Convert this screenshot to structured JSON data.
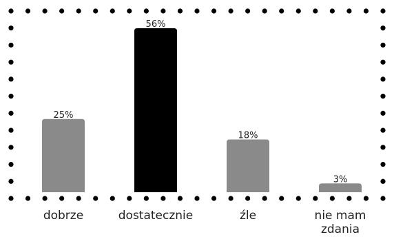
{
  "chart_data": {
    "type": "bar",
    "categories": [
      "dobrze",
      "dostatecznie",
      "źle",
      "nie mam zdania"
    ],
    "values": [
      25,
      56,
      18,
      3
    ],
    "value_labels": [
      "25%",
      "56%",
      "18%",
      "3%"
    ],
    "bar_colors": [
      "#8a8a8a",
      "#000000",
      "#8a8a8a",
      "#8a8a8a"
    ],
    "border_color": "#000000",
    "ylim": [
      0,
      56
    ],
    "grid": false,
    "title": "",
    "xlabel": "",
    "ylabel": ""
  }
}
